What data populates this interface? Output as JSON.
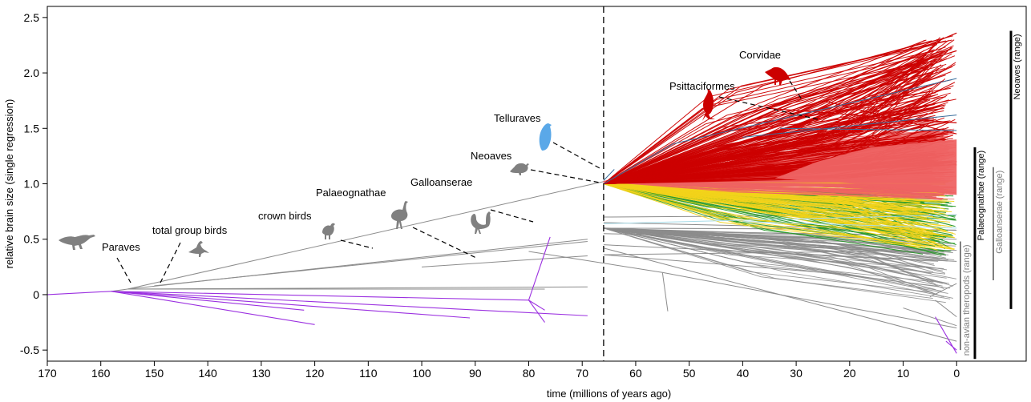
{
  "chart_data": {
    "type": "line",
    "xlabel": "time (millions of years ago)",
    "ylabel": "relative brain size (single regression)",
    "xlim": [
      170,
      -13
    ],
    "ylim": [
      -0.6,
      2.6
    ],
    "xticks": [
      170,
      160,
      150,
      140,
      130,
      120,
      110,
      100,
      90,
      80,
      70,
      60,
      50,
      40,
      30,
      20,
      10,
      0
    ],
    "yticks": [
      -0.5,
      0,
      0.5,
      1.0,
      1.5,
      2.0,
      2.5
    ],
    "ytick_labels": [
      "-0.5",
      "0",
      "0.5",
      "1.0",
      "1.5",
      "2.0",
      "2.5"
    ],
    "vline_x": 66,
    "colors": {
      "non_avian": "#9B30E0",
      "stem": "#8C8C8C",
      "palaeognathae": "#F2D31A",
      "galloanserae": "#2A9A2A",
      "neoaves_fill": "#EE6363",
      "corvidae": "#CC0000",
      "telluraves": "#5AA8E8",
      "blue_lines": "#3A6E9C",
      "light_blue": "#A8DCE8",
      "silhouette": "#808080"
    },
    "segments": {
      "non_avian": [
        [
          [
            170,
            0
          ],
          [
            158,
            0.03
          ]
        ],
        [
          [
            158,
            0.03
          ],
          [
            69,
            -0.19
          ]
        ],
        [
          [
            158,
            0.03
          ],
          [
            120,
            -0.27
          ]
        ],
        [
          [
            158,
            0.03
          ],
          [
            91,
            -0.21
          ]
        ],
        [
          [
            158,
            0.03
          ],
          [
            122,
            -0.14
          ]
        ],
        [
          [
            158,
            0.03
          ],
          [
            80,
            -0.05
          ]
        ],
        [
          [
            80,
            -0.05
          ],
          [
            76,
            0.52
          ]
        ],
        [
          [
            80,
            -0.05
          ],
          [
            77,
            -0.14
          ]
        ],
        [
          [
            80,
            -0.05
          ],
          [
            77,
            -0.25
          ]
        ]
      ],
      "stem": [
        [
          [
            158,
            0.03
          ],
          [
            155,
            0.05
          ]
        ],
        [
          [
            155,
            0.05
          ],
          [
            66,
            1.02
          ]
        ],
        [
          [
            155,
            0.05
          ],
          [
            69,
            0.5
          ]
        ],
        [
          [
            155,
            0.05
          ],
          [
            77,
            0.05
          ]
        ],
        [
          [
            155,
            0.05
          ],
          [
            69,
            0.07
          ]
        ],
        [
          [
            150,
            0.08
          ],
          [
            69,
            0.48
          ]
        ],
        [
          [
            100,
            0.25
          ],
          [
            69,
            0.35
          ]
        ],
        [
          [
            80,
            0.39
          ],
          [
            55,
            0.2
          ]
        ],
        [
          [
            55,
            0.2
          ],
          [
            54,
            -0.15
          ]
        ],
        [
          [
            55,
            0.2
          ],
          [
            0,
            -0.3
          ]
        ],
        [
          [
            66,
            0.36
          ],
          [
            0,
            0.4
          ]
        ],
        [
          [
            66,
            0.36
          ],
          [
            20,
            0.18
          ]
        ],
        [
          [
            66,
            0.45
          ],
          [
            0,
            0.3
          ]
        ],
        [
          [
            66,
            0.55
          ],
          [
            0,
            0.5
          ]
        ],
        [
          [
            66,
            0.6
          ],
          [
            43,
            0.49
          ]
        ],
        [
          [
            66,
            0.65
          ],
          [
            0,
            0.58
          ]
        ],
        [
          [
            66,
            0.7
          ],
          [
            0,
            0.72
          ]
        ],
        [
          [
            66,
            0.42
          ],
          [
            0,
            -0.42
          ]
        ],
        [
          [
            10,
            -0.12
          ],
          [
            0,
            -0.28
          ]
        ],
        [
          [
            4,
            -0.05
          ],
          [
            0,
            -0.2
          ]
        ],
        [
          [
            5,
            -0.02
          ],
          [
            0,
            0.1
          ]
        ]
      ],
      "corvidae": [
        [
          [
            66,
            1.0
          ],
          [
            0,
            2.36
          ]
        ],
        [
          [
            66,
            1.0
          ],
          [
            35,
            1.68
          ]
        ],
        [
          [
            35,
            1.68
          ],
          [
            0,
            2.2
          ]
        ],
        [
          [
            35,
            1.68
          ],
          [
            0,
            1.55
          ]
        ],
        [
          [
            25,
            1.75
          ],
          [
            0,
            1.45
          ]
        ],
        [
          [
            66,
            1.0
          ],
          [
            0,
            1.2
          ]
        ]
      ],
      "blue_lines": [
        [
          [
            66,
            1.0
          ],
          [
            53,
            1.36
          ]
        ],
        [
          [
            53,
            1.36
          ],
          [
            0,
            1.95
          ]
        ],
        [
          [
            33,
            1.5
          ],
          [
            0,
            1.48
          ]
        ],
        [
          [
            40,
            1.42
          ],
          [
            0,
            1.62
          ]
        ],
        [
          [
            66,
            1.03
          ],
          [
            64,
            1.13
          ]
        ]
      ],
      "light_blue": [
        [
          [
            66,
            0.64
          ],
          [
            0,
            0.72
          ]
        ],
        [
          [
            40,
            0.66
          ],
          [
            0,
            0.6
          ]
        ]
      ],
      "non_avian_tips": [
        [
          [
            4,
            -0.2
          ],
          [
            0,
            -0.53
          ]
        ],
        [
          [
            2,
            -0.42
          ],
          [
            0,
            -0.5
          ]
        ]
      ]
    },
    "bundles": {
      "corvidae_fan": {
        "root": [
          66,
          1.0
        ],
        "count": 180,
        "y_min": 1.1,
        "y_max": 2.35,
        "x_min": 0,
        "x_max": 25
      },
      "neoaves_fan": {
        "root": [
          66,
          1.02
        ],
        "count": 260,
        "y_min": 0.85,
        "y_max": 1.5,
        "x_min": 0,
        "x_max": 20
      },
      "yellow_fan": {
        "root": [
          66,
          1.0
        ],
        "count": 90,
        "y_min": 0.4,
        "y_max": 1.05,
        "x_min": 0,
        "x_max": 30
      },
      "green_fan": {
        "root": [
          66,
          1.0
        ],
        "count": 80,
        "y_min": 0.35,
        "y_max": 0.95,
        "x_min": 0,
        "x_max": 30
      },
      "gray_fan": {
        "root": [
          66,
          0.6
        ],
        "count": 60,
        "y_min": -0.1,
        "y_max": 0.6,
        "x_min": 0,
        "x_max": 20
      }
    },
    "neoaves_band": {
      "x_start": 34,
      "x_end": 0,
      "y_bottom_start": 1.05,
      "y_top_start": 1.28,
      "y_bottom_end": 0.9,
      "y_top_end": 1.4
    },
    "clades": [
      {
        "label": "Paraves",
        "silhouette": "dinosaur",
        "at": [
          153,
          0.05
        ]
      },
      {
        "label": "total group birds",
        "silhouette": "bird-long-tail",
        "at": [
          148,
          0.07
        ]
      },
      {
        "label": "crown birds",
        "silhouette": "tinamou",
        "at": [
          90,
          0.33
        ]
      },
      {
        "label": "Palaeognathae",
        "silhouette": "rhea",
        "at": [
          89,
          0.32
        ]
      },
      {
        "label": "Galloanserae",
        "silhouette": "rooster",
        "at": [
          81,
          0.65
        ]
      },
      {
        "label": "Neoaves",
        "silhouette": "pigeon",
        "at": [
          66,
          1.02
        ]
      },
      {
        "label": "Telluraves",
        "silhouette": "raptor",
        "at": [
          65,
          1.05
        ]
      },
      {
        "label": "Psittaciformes",
        "silhouette": "cockatoo",
        "at": [
          24,
          1.62
        ]
      },
      {
        "label": "Corvidae",
        "silhouette": "crow",
        "at": [
          22,
          1.75
        ]
      }
    ],
    "ranges": [
      {
        "label": "non-avian theropods (range)",
        "y_min": -0.5,
        "y_max": 0.48,
        "color": "#808080",
        "width": 2
      },
      {
        "label": "Palaeognathae (range)",
        "y_min": -0.58,
        "y_max": 1.33,
        "color": "#000000",
        "width": 3
      },
      {
        "label": "Galloanserae (range)",
        "y_min": 0.13,
        "y_max": 1.15,
        "color": "#808080",
        "width": 2
      },
      {
        "label": "Neoaves (range)",
        "y_min": -0.13,
        "y_max": 2.38,
        "color": "#000000",
        "width": 3
      }
    ]
  }
}
